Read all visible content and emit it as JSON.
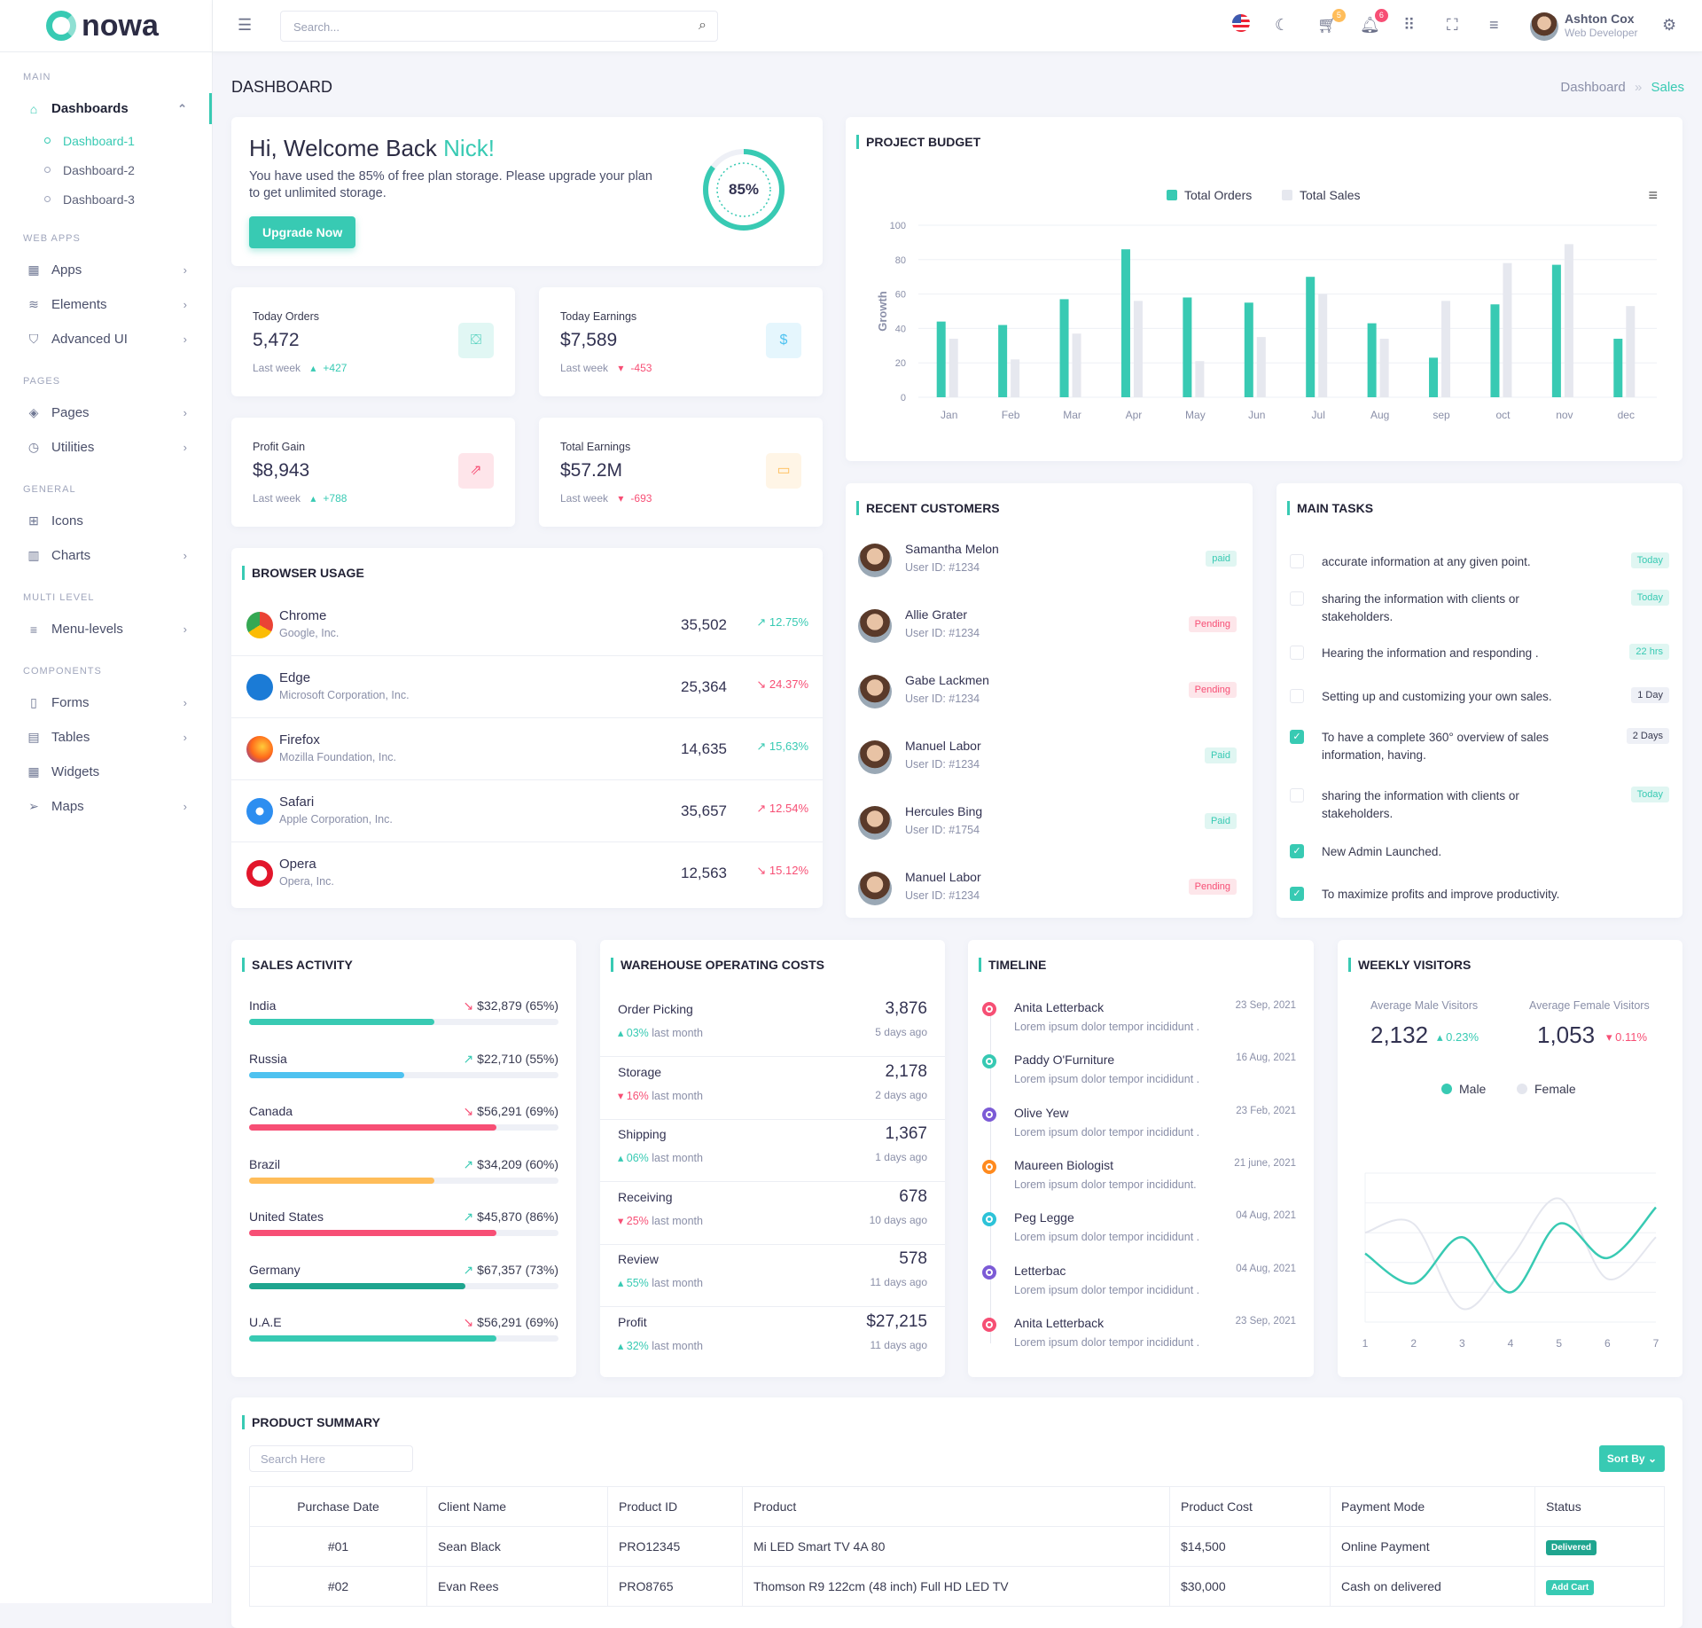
{
  "brand": {
    "name": "nowa",
    "accent": "#38cab3"
  },
  "header": {
    "search_placeholder": "Search...",
    "cart_count": "5",
    "notif_count": "6",
    "user_name": "Ashton Cox",
    "user_role": "Web Developer"
  },
  "sidebar": [
    {
      "cat": "MAIN"
    },
    {
      "label": "Dashboards",
      "icon": "home-icon",
      "active": true,
      "chev": "⌃"
    },
    {
      "sub": "Dashboard-1",
      "active": true
    },
    {
      "sub": "Dashboard-2"
    },
    {
      "sub": "Dashboard-3"
    },
    {
      "cat": "WEB APPS"
    },
    {
      "label": "Apps",
      "icon": "grid-icon",
      "chev": "›"
    },
    {
      "label": "Elements",
      "icon": "database-icon",
      "chev": "›"
    },
    {
      "label": "Advanced UI",
      "icon": "shield-icon",
      "chev": "›"
    },
    {
      "cat": "PAGES"
    },
    {
      "label": "Pages",
      "icon": "layers-icon",
      "chev": "›"
    },
    {
      "label": "Utilities",
      "icon": "clock-icon",
      "chev": "›"
    },
    {
      "cat": "GENERAL"
    },
    {
      "label": "Icons",
      "icon": "gift-icon"
    },
    {
      "label": "Charts",
      "icon": "bar-chart-icon",
      "chev": "›"
    },
    {
      "cat": "MULTI LEVEL"
    },
    {
      "label": "Menu-levels",
      "icon": "menu-icon",
      "chev": "›"
    },
    {
      "cat": "COMPONENTS"
    },
    {
      "label": "Forms",
      "icon": "file-icon",
      "chev": "›"
    },
    {
      "label": "Tables",
      "icon": "table-icon",
      "chev": "›"
    },
    {
      "label": "Widgets",
      "icon": "widgets-icon"
    },
    {
      "label": "Maps",
      "icon": "navigation-icon",
      "chev": "›"
    }
  ],
  "page": {
    "title": "DASHBOARD",
    "breadcrumb": [
      "Dashboard",
      "Sales"
    ]
  },
  "welcome": {
    "greeting": "Hi, Welcome Back ",
    "name": "Nick!",
    "text": "You have used the 85% of free plan storage. Please upgrade your plan to get unlimited storage.",
    "button": "Upgrade Now",
    "percent_label": "85%",
    "percent": 85
  },
  "stats": [
    {
      "label": "Today Orders",
      "value": "5,472",
      "period": "Last week",
      "delta": "+427",
      "dir": "up",
      "icon": "shopping-bag-icon",
      "color": "#38cab3"
    },
    {
      "label": "Today Earnings",
      "value": "$7,589",
      "period": "Last week",
      "delta": "-453",
      "dir": "dn",
      "icon": "dollar-icon",
      "color": "#4ec2f0"
    },
    {
      "label": "Profit Gain",
      "value": "$8,943",
      "period": "Last week",
      "delta": "+788",
      "dir": "up",
      "icon": "external-link-icon",
      "color": "#f74f75"
    },
    {
      "label": "Total Earnings",
      "value": "$57.2M",
      "period": "Last week",
      "delta": "-693",
      "dir": "dn",
      "icon": "credit-card-icon",
      "color": "#ffbd5a"
    }
  ],
  "browser": {
    "title": "BROWSER USAGE",
    "rows": [
      {
        "name": "Chrome",
        "company": "Google, Inc.",
        "value": "35,502",
        "pct": "12.75%",
        "trend": "up",
        "pct_color": "up"
      },
      {
        "name": "Edge",
        "company": "Microsoft Corporation, Inc.",
        "value": "25,364",
        "pct": "24.37%",
        "trend": "dn",
        "pct_color": "dn"
      },
      {
        "name": "Firefox",
        "company": "Mozilla Foundation, Inc.",
        "value": "14,635",
        "pct": "15,63%",
        "trend": "up",
        "pct_color": "up"
      },
      {
        "name": "Safari",
        "company": "Apple Corporation, Inc.",
        "value": "35,657",
        "pct": "12.54%",
        "trend": "up",
        "pct_color": "dn"
      },
      {
        "name": "Opera",
        "company": "Opera, Inc.",
        "value": "12,563",
        "pct": "15.12%",
        "trend": "dn",
        "pct_color": "dn"
      }
    ]
  },
  "chart_data": [
    {
      "type": "bar",
      "title": "PROJECT BUDGET",
      "ylabel": "Growth",
      "ylim": [
        0,
        100
      ],
      "yticks": [
        0,
        20,
        40,
        60,
        80,
        100
      ],
      "grid": true,
      "legend": "top-center",
      "categories": [
        "Jan",
        "Feb",
        "Mar",
        "Apr",
        "May",
        "Jun",
        "Jul",
        "Aug",
        "sep",
        "oct",
        "nov",
        "dec"
      ],
      "series": [
        {
          "name": "Total Orders",
          "color": "#38cab3",
          "values": [
            44,
            42,
            57,
            86,
            58,
            55,
            70,
            43,
            23,
            54,
            77,
            34
          ]
        },
        {
          "name": "Total Sales",
          "color": "#e6e8ef",
          "values": [
            34,
            22,
            37,
            56,
            21,
            35,
            60,
            34,
            56,
            78,
            89,
            53
          ]
        }
      ]
    },
    {
      "type": "line",
      "title": "WEEKLY VISITORS",
      "x": [
        1,
        2,
        3,
        4,
        5,
        6,
        7
      ],
      "ylim": [
        0,
        100
      ],
      "grid": true,
      "legend": "top-center",
      "series": [
        {
          "name": "Male",
          "color": "#38cab3",
          "values": [
            46,
            26,
            57,
            20,
            66,
            43,
            77
          ]
        },
        {
          "name": "Female",
          "color": "#e4e6ee",
          "values": [
            60,
            66,
            9,
            43,
            83,
            29,
            57
          ]
        }
      ]
    }
  ],
  "customers": {
    "title": "RECENT CUSTOMERS",
    "rows": [
      {
        "name": "Samantha Melon",
        "id": "User ID: #1234",
        "status": "paid"
      },
      {
        "name": "Allie Grater",
        "id": "User ID: #1234",
        "status": "Pending"
      },
      {
        "name": "Gabe Lackmen",
        "id": "User ID: #1234",
        "status": "Pending"
      },
      {
        "name": "Manuel Labor",
        "id": "User ID: #1234",
        "status": "Paid"
      },
      {
        "name": "Hercules Bing",
        "id": "User ID: #1754",
        "status": "Paid"
      },
      {
        "name": "Manuel Labor",
        "id": "User ID: #1234",
        "status": "Pending"
      }
    ]
  },
  "tasks": {
    "title": "MAIN TASKS",
    "rows": [
      {
        "text": "accurate information at any given point.",
        "badge": "Today",
        "checked": false,
        "kind": "teal"
      },
      {
        "text": "sharing the information with clients or stakeholders.",
        "badge": "Today",
        "checked": false,
        "kind": "teal"
      },
      {
        "text": "Hearing the information and responding .",
        "badge": "22 hrs",
        "checked": false,
        "kind": "teal"
      },
      {
        "text": "Setting up and customizing your own sales.",
        "badge": "1 Day",
        "checked": false,
        "kind": "gray"
      },
      {
        "text": "To have a complete 360° overview of sales information, having.",
        "badge": "2 Days",
        "checked": true,
        "kind": "gray"
      },
      {
        "text": "sharing the information with clients or stakeholders.",
        "badge": "Today",
        "checked": false,
        "kind": "teal"
      },
      {
        "text": "New Admin Launched.",
        "badge": "",
        "checked": true
      },
      {
        "text": "To maximize profits and improve productivity.",
        "badge": "",
        "checked": true
      }
    ]
  },
  "sales": {
    "title": "SALES ACTIVITY",
    "rows": [
      {
        "country": "India",
        "value": "$32,879 (65%)",
        "trend": "dn",
        "fill": 60,
        "color": "#38cab3"
      },
      {
        "country": "Russia",
        "value": "$22,710 (55%)",
        "trend": "up",
        "fill": 50,
        "color": "#4ec2f0"
      },
      {
        "country": "Canada",
        "value": "$56,291 (69%)",
        "trend": "dn",
        "fill": 80,
        "color": "#f74f75"
      },
      {
        "country": "Brazil",
        "value": "$34,209 (60%)",
        "trend": "up",
        "fill": 60,
        "color": "#ffbd5a"
      },
      {
        "country": "United States",
        "value": "$45,870 (86%)",
        "trend": "up",
        "fill": 80,
        "color": "#f74f75"
      },
      {
        "country": "Germany",
        "value": "$67,357 (73%)",
        "trend": "up",
        "fill": 70,
        "color": "#1fa58f"
      },
      {
        "country": "U.A.E",
        "value": "$56,291 (69%)",
        "trend": "dn",
        "fill": 80,
        "color": "#38cab3"
      }
    ]
  },
  "warehouse": {
    "title": "WAREHOUSE OPERATING COSTS",
    "rows": [
      {
        "label": "Order Picking",
        "value": "3,876",
        "pct": "03%",
        "note": "last month",
        "dir": "up",
        "ago": "5 days ago"
      },
      {
        "label": "Storage",
        "value": "2,178",
        "pct": "16%",
        "note": "last month",
        "dir": "dn",
        "ago": "2 days ago"
      },
      {
        "label": "Shipping",
        "value": "1,367",
        "pct": "06%",
        "note": "last month",
        "dir": "up",
        "ago": "1 days ago"
      },
      {
        "label": "Receiving",
        "value": "678",
        "pct": "25%",
        "note": "last month",
        "dir": "dn",
        "ago": "10 days ago"
      },
      {
        "label": "Review",
        "value": "578",
        "pct": "55%",
        "note": "last month",
        "dir": "up",
        "ago": "11 days ago"
      },
      {
        "label": "Profit",
        "value": "$27,215",
        "pct": "32%",
        "note": "last month",
        "dir": "up",
        "ago": "11 days ago"
      }
    ]
  },
  "timeline": {
    "title": "TIMELINE",
    "rows": [
      {
        "name": "Anita Letterback",
        "date": "23 Sep, 2021",
        "text": "Lorem ipsum dolor tempor incididunt .",
        "color": "#f74f75"
      },
      {
        "name": "Paddy O'Furniture",
        "date": "16 Aug, 2021",
        "text": "Lorem ipsum dolor tempor incididunt .",
        "color": "#38cab3"
      },
      {
        "name": "Olive Yew",
        "date": "23 Feb, 2021",
        "text": "Lorem ipsum dolor tempor incididunt .",
        "color": "#7c5cd6"
      },
      {
        "name": "Maureen Biologist",
        "date": "21 june, 2021",
        "text": "Lorem ipsum dolor tempor incididunt.",
        "color": "#ff8a1f"
      },
      {
        "name": "Peg Legge",
        "date": "04 Aug, 2021",
        "text": "Lorem ipsum dolor tempor incididunt .",
        "color": "#2ec4d9"
      },
      {
        "name": "Letterbac",
        "date": "04 Aug, 2021",
        "text": "Lorem ipsum dolor tempor incididunt .",
        "color": "#7c5cd6"
      },
      {
        "name": "Anita Letterback",
        "date": "23 Sep, 2021",
        "text": "Lorem ipsum dolor tempor incididunt .",
        "color": "#f74f75"
      }
    ]
  },
  "visitors": {
    "male_label": "Average Male Visitors",
    "male_value": "2,132",
    "male_delta": "0.23%",
    "female_label": "Average Female Visitors",
    "female_value": "1,053",
    "female_delta": "0.11%"
  },
  "products": {
    "title": "PRODUCT SUMMARY",
    "search_placeholder": "Search Here",
    "sort_label": "Sort By",
    "columns": [
      "Purchase Date",
      "Client Name",
      "Product ID",
      "Product",
      "Product Cost",
      "Payment Mode",
      "Status"
    ],
    "rows": [
      [
        "#01",
        "Sean Black",
        "PRO12345",
        "Mi LED Smart TV 4A 80",
        "$14,500",
        "Online Payment",
        "Delivered"
      ],
      [
        "#02",
        "Evan Rees",
        "PRO8765",
        "Thomson R9 122cm (48 inch) Full HD LED TV",
        "$30,000",
        "Cash on delivered",
        "Add Cart"
      ]
    ]
  }
}
